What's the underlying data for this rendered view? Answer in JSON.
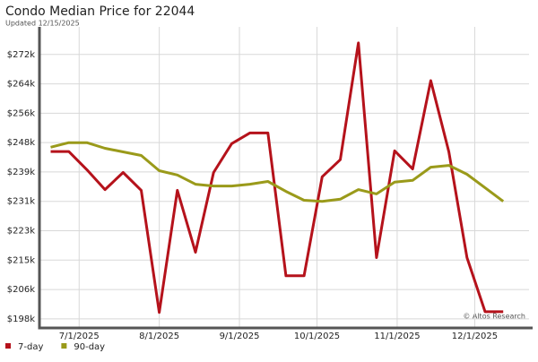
{
  "chart_data": {
    "type": "line",
    "title": "Condo Median Price for 22044",
    "subtitle": "Updated 12/15/2025",
    "annotation": "© Altos Research",
    "x": [
      "2025-06-20",
      "2025-06-27",
      "2025-07-04",
      "2025-07-11",
      "2025-07-18",
      "2025-07-25",
      "2025-08-01",
      "2025-08-08",
      "2025-08-15",
      "2025-08-22",
      "2025-08-29",
      "2025-09-05",
      "2025-09-12",
      "2025-09-19",
      "2025-09-26",
      "2025-10-03",
      "2025-10-10",
      "2025-10-17",
      "2025-10-24",
      "2025-10-31",
      "2025-11-07",
      "2025-11-14",
      "2025-11-21",
      "2025-11-28",
      "2025-12-05",
      "2025-12-12"
    ],
    "series": [
      {
        "name": "7-day",
        "color": "#b5121b",
        "values": [
          245000,
          245000,
          239900,
          234300,
          239100,
          234100,
          199800,
          234100,
          216700,
          239100,
          247200,
          250200,
          250200,
          210100,
          210100,
          237900,
          242700,
          275500,
          215200,
          245200,
          240100,
          264900,
          244900,
          215200,
          200000,
          200000
        ]
      },
      {
        "name": "90-day",
        "color": "#9a9a1a",
        "values": [
          246200,
          247500,
          247500,
          245900,
          244900,
          243900,
          239600,
          238400,
          235800,
          235300,
          235300,
          235800,
          236600,
          233800,
          231300,
          231000,
          231600,
          234300,
          233100,
          236400,
          236900,
          240600,
          241100,
          238600,
          234800,
          231000
        ]
      }
    ],
    "xlim": [
      "2025-06-16",
      "2025-12-22"
    ],
    "xticks": [
      {
        "value": "2025-07-01",
        "label": "7/1/2025"
      },
      {
        "value": "2025-08-01",
        "label": "8/1/2025"
      },
      {
        "value": "2025-09-01",
        "label": "9/1/2025"
      },
      {
        "value": "2025-10-01",
        "label": "10/1/2025"
      },
      {
        "value": "2025-11-01",
        "label": "11/1/2025"
      },
      {
        "value": "2025-12-01",
        "label": "12/1/2025"
      }
    ],
    "ylim": [
      195700,
      280000
    ],
    "yticks": [
      {
        "value": 198000,
        "label": "$198k"
      },
      {
        "value": 206250,
        "label": "$206k"
      },
      {
        "value": 214500,
        "label": "$215k"
      },
      {
        "value": 222750,
        "label": "$223k"
      },
      {
        "value": 231000,
        "label": "$231k"
      },
      {
        "value": 239250,
        "label": "$239k"
      },
      {
        "value": 247500,
        "label": "$248k"
      },
      {
        "value": 255750,
        "label": "$256k"
      },
      {
        "value": 264000,
        "label": "$264k"
      },
      {
        "value": 272250,
        "label": "$272k"
      }
    ],
    "grid": true,
    "legend": "bottom-left"
  }
}
